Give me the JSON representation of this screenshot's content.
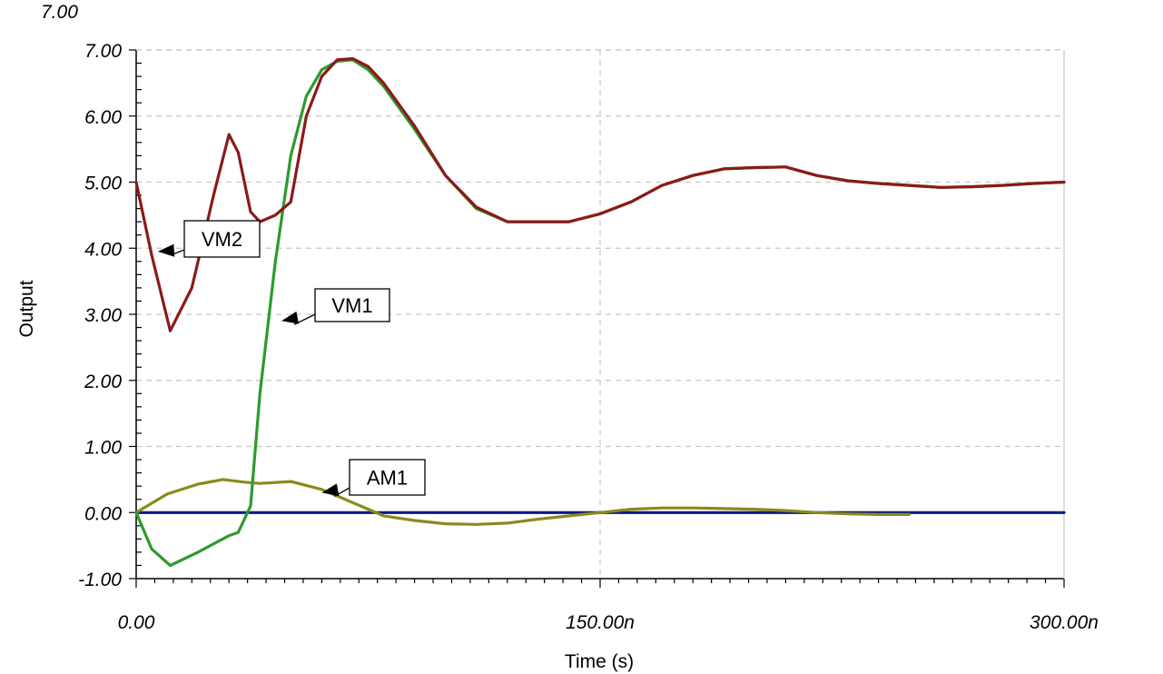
{
  "chart_data": {
    "type": "line",
    "title": "",
    "xlabel": "Time (s)",
    "ylabel": "Output",
    "x_unit": "ns",
    "xlim": [
      0,
      300
    ],
    "ylim": [
      -1,
      7
    ],
    "x_tick_values": [
      0,
      150,
      300
    ],
    "x_tick_labels": [
      "0.00",
      "150.00n",
      "300.00n"
    ],
    "y_tick_values": [
      -1,
      0,
      1,
      2,
      3,
      4,
      5,
      6,
      7
    ],
    "y_tick_labels": [
      "-1.00",
      "0.00",
      "1.00",
      "2.00",
      "3.00",
      "4.00",
      "5.00",
      "6.00",
      "7.00"
    ],
    "top_partial_label": "7.00",
    "grid": true,
    "series": [
      {
        "name": "VM1",
        "color": "#2e9a2e",
        "x": [
          0,
          5,
          11,
          20,
          30,
          33,
          37,
          40,
          45,
          50,
          55,
          60,
          65,
          70,
          75,
          80,
          90,
          100,
          110,
          120,
          130,
          140,
          150,
          160,
          170,
          180,
          190,
          200,
          210,
          220,
          230,
          240,
          250,
          260,
          270,
          280,
          290,
          300
        ],
        "values": [
          0,
          -0.55,
          -0.8,
          -0.6,
          -0.35,
          -0.3,
          0.1,
          1.8,
          3.8,
          5.4,
          6.3,
          6.7,
          6.83,
          6.85,
          6.7,
          6.45,
          5.8,
          5.1,
          4.6,
          4.4,
          4.4,
          4.4,
          4.52,
          4.7,
          4.95,
          5.1,
          5.2,
          5.22,
          5.23,
          5.1,
          5.02,
          4.98,
          4.95,
          4.92,
          4.93,
          4.95,
          4.98,
          5.0
        ]
      },
      {
        "name": "VM2",
        "color": "#8b1a1a",
        "x": [
          0,
          5,
          11,
          18,
          25,
          30,
          33,
          37,
          40,
          45,
          50,
          55,
          60,
          65,
          70,
          75,
          80,
          90,
          100,
          110,
          120,
          130,
          140,
          150,
          160,
          170,
          180,
          190,
          200,
          210,
          220,
          230,
          240,
          250,
          260,
          270,
          280,
          290,
          300
        ],
        "values": [
          5.0,
          3.9,
          2.75,
          3.4,
          4.8,
          5.72,
          5.45,
          4.55,
          4.4,
          4.5,
          4.7,
          6.0,
          6.6,
          6.85,
          6.87,
          6.75,
          6.5,
          5.85,
          5.1,
          4.62,
          4.4,
          4.4,
          4.4,
          4.52,
          4.7,
          4.95,
          5.1,
          5.2,
          5.22,
          5.23,
          5.1,
          5.02,
          4.98,
          4.95,
          4.92,
          4.93,
          4.95,
          4.98,
          5.0
        ]
      },
      {
        "name": "AM1",
        "color": "#8a8a1e",
        "x": [
          0,
          10,
          20,
          28,
          35,
          40,
          50,
          60,
          70,
          80,
          90,
          100,
          110,
          120,
          130,
          140,
          150,
          160,
          170,
          180,
          190,
          200,
          210,
          220,
          230,
          240,
          250
        ],
        "values": [
          0,
          0.28,
          0.43,
          0.5,
          0.46,
          0.44,
          0.47,
          0.35,
          0.15,
          -0.05,
          -0.12,
          -0.17,
          -0.18,
          -0.16,
          -0.1,
          -0.05,
          0.0,
          0.05,
          0.07,
          0.07,
          0.06,
          0.05,
          0.03,
          0.0,
          -0.02,
          -0.03,
          -0.03
        ]
      },
      {
        "name": "",
        "color": "#0a1a8c",
        "x": [
          0,
          300
        ],
        "values": [
          0,
          0
        ]
      }
    ],
    "annotations": [
      {
        "text": "VM2",
        "series": "VM2",
        "point_x": 7,
        "point_y": 3.95
      },
      {
        "text": "VM1",
        "series": "VM1",
        "point_x": 47,
        "point_y": 2.9
      },
      {
        "text": "AM1",
        "series": "AM1",
        "point_x": 60,
        "point_y": 0.3
      }
    ]
  }
}
